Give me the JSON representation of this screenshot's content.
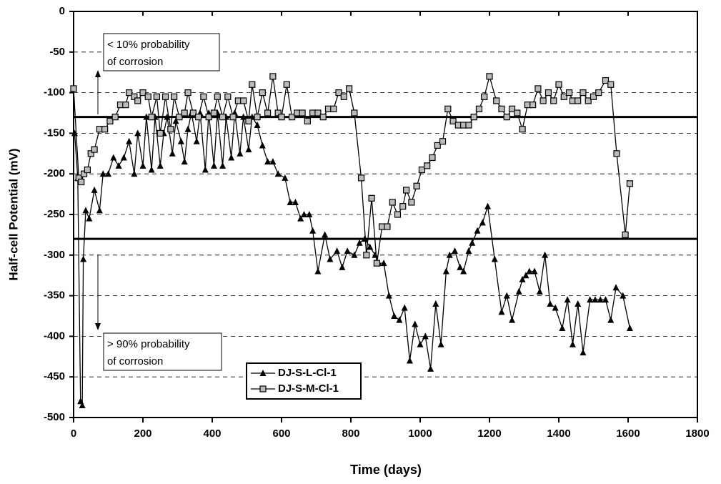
{
  "chart_data": {
    "type": "line",
    "x_label": "Time (days)",
    "y_label": "Half-cell Potential (mV)",
    "xlim": [
      0,
      1800
    ],
    "xticks": [
      0,
      200,
      400,
      600,
      800,
      1000,
      1200,
      1400,
      1600,
      1800
    ],
    "ylim": [
      -500,
      0
    ],
    "yticks": [
      0,
      -50,
      -100,
      -150,
      -200,
      -250,
      -300,
      -350,
      -400,
      -450,
      -500
    ],
    "grid": true,
    "legend": "bottom-center",
    "reference_lines": [
      -130,
      -280
    ],
    "annotations": [
      {
        "lines": [
          "< 10% probability",
          "of corrosion"
        ]
      },
      {
        "lines": [
          "> 90% probability",
          "of corrosion"
        ]
      }
    ],
    "series": [
      {
        "name": "DJ-S-L-Cl-1",
        "color": "#000000",
        "marker": "triangle",
        "x": [
          3,
          12,
          20,
          25,
          28,
          35,
          45,
          60,
          75,
          85,
          100,
          115,
          130,
          145,
          160,
          175,
          185,
          200,
          210,
          225,
          235,
          250,
          260,
          270,
          285,
          295,
          310,
          320,
          330,
          340,
          355,
          365,
          380,
          390,
          405,
          415,
          430,
          440,
          455,
          465,
          480,
          490,
          505,
          515,
          530,
          545,
          560,
          575,
          590,
          610,
          625,
          640,
          655,
          665,
          680,
          690,
          705,
          725,
          740,
          760,
          775,
          790,
          810,
          825,
          840,
          855,
          870,
          880,
          895,
          910,
          925,
          940,
          955,
          970,
          985,
          1000,
          1015,
          1030,
          1045,
          1060,
          1075,
          1085,
          1100,
          1115,
          1125,
          1140,
          1150,
          1165,
          1180,
          1195,
          1215,
          1235,
          1250,
          1265,
          1285,
          1295,
          1305,
          1315,
          1330,
          1345,
          1360,
          1375,
          1390,
          1410,
          1425,
          1440,
          1455,
          1470,
          1490,
          1505,
          1520,
          1535,
          1550,
          1565,
          1585,
          1605
        ],
        "values": [
          -150,
          -205,
          -480,
          -485,
          -305,
          -245,
          -255,
          -220,
          -245,
          -200,
          -200,
          -180,
          -190,
          -180,
          -160,
          -200,
          -150,
          -190,
          -130,
          -195,
          -130,
          -190,
          -150,
          -130,
          -175,
          -135,
          -160,
          -185,
          -145,
          -125,
          -160,
          -125,
          -195,
          -125,
          -190,
          -125,
          -190,
          -130,
          -180,
          -125,
          -175,
          -130,
          -170,
          -130,
          -140,
          -165,
          -185,
          -185,
          -200,
          -205,
          -235,
          -235,
          -255,
          -250,
          -250,
          -270,
          -320,
          -275,
          -305,
          -295,
          -315,
          -295,
          -300,
          -285,
          -280,
          -290,
          -300,
          -310,
          -310,
          -350,
          -375,
          -380,
          -365,
          -430,
          -385,
          -410,
          -400,
          -440,
          -360,
          -410,
          -320,
          -300,
          -295,
          -315,
          -320,
          -295,
          -285,
          -270,
          -260,
          -240,
          -305,
          -370,
          -350,
          -380,
          -345,
          -330,
          -325,
          -320,
          -320,
          -345,
          -300,
          -360,
          -365,
          -390,
          -355,
          -410,
          -360,
          -420,
          -355,
          -355,
          -355,
          -355,
          -380,
          -340,
          -350,
          -390
        ]
      },
      {
        "name": "DJ-S-M-Cl-1",
        "color": "#000000",
        "marker": "square",
        "x": [
          0,
          15,
          22,
          30,
          40,
          50,
          60,
          75,
          90,
          105,
          120,
          135,
          150,
          160,
          175,
          185,
          200,
          215,
          225,
          240,
          250,
          265,
          280,
          290,
          305,
          320,
          330,
          345,
          360,
          375,
          390,
          405,
          415,
          430,
          445,
          460,
          475,
          490,
          505,
          515,
          530,
          545,
          560,
          575,
          590,
          600,
          615,
          630,
          645,
          660,
          675,
          690,
          705,
          720,
          735,
          750,
          765,
          780,
          795,
          810,
          830,
          845,
          860,
          875,
          890,
          905,
          920,
          935,
          950,
          960,
          975,
          990,
          1005,
          1020,
          1035,
          1050,
          1065,
          1080,
          1095,
          1110,
          1125,
          1140,
          1155,
          1170,
          1185,
          1200,
          1220,
          1235,
          1250,
          1265,
          1280,
          1295,
          1310,
          1325,
          1340,
          1355,
          1370,
          1385,
          1400,
          1415,
          1430,
          1440,
          1455,
          1470,
          1485,
          1500,
          1515,
          1535,
          1550,
          1567,
          1592,
          1605
        ],
        "values": [
          -95,
          -205,
          -210,
          -200,
          -195,
          -175,
          -170,
          -145,
          -145,
          -135,
          -130,
          -115,
          -115,
          -100,
          -105,
          -110,
          -100,
          -105,
          -130,
          -105,
          -150,
          -105,
          -145,
          -105,
          -130,
          -125,
          -100,
          -125,
          -130,
          -105,
          -130,
          -125,
          -105,
          -130,
          -105,
          -130,
          -110,
          -110,
          -135,
          -90,
          -130,
          -100,
          -125,
          -80,
          -125,
          -130,
          -90,
          -130,
          -125,
          -125,
          -135,
          -125,
          -125,
          -130,
          -120,
          -120,
          -100,
          -105,
          -95,
          -125,
          -205,
          -300,
          -230,
          -310,
          -265,
          -265,
          -235,
          -250,
          -240,
          -220,
          -235,
          -215,
          -195,
          -190,
          -180,
          -165,
          -160,
          -120,
          -135,
          -140,
          -140,
          -140,
          -130,
          -120,
          -105,
          -80,
          -110,
          -120,
          -130,
          -120,
          -125,
          -145,
          -115,
          -115,
          -95,
          -110,
          -100,
          -110,
          -90,
          -105,
          -100,
          -110,
          -110,
          -100,
          -110,
          -105,
          -100,
          -85,
          -90,
          -175,
          -275,
          -212
        ]
      }
    ]
  }
}
